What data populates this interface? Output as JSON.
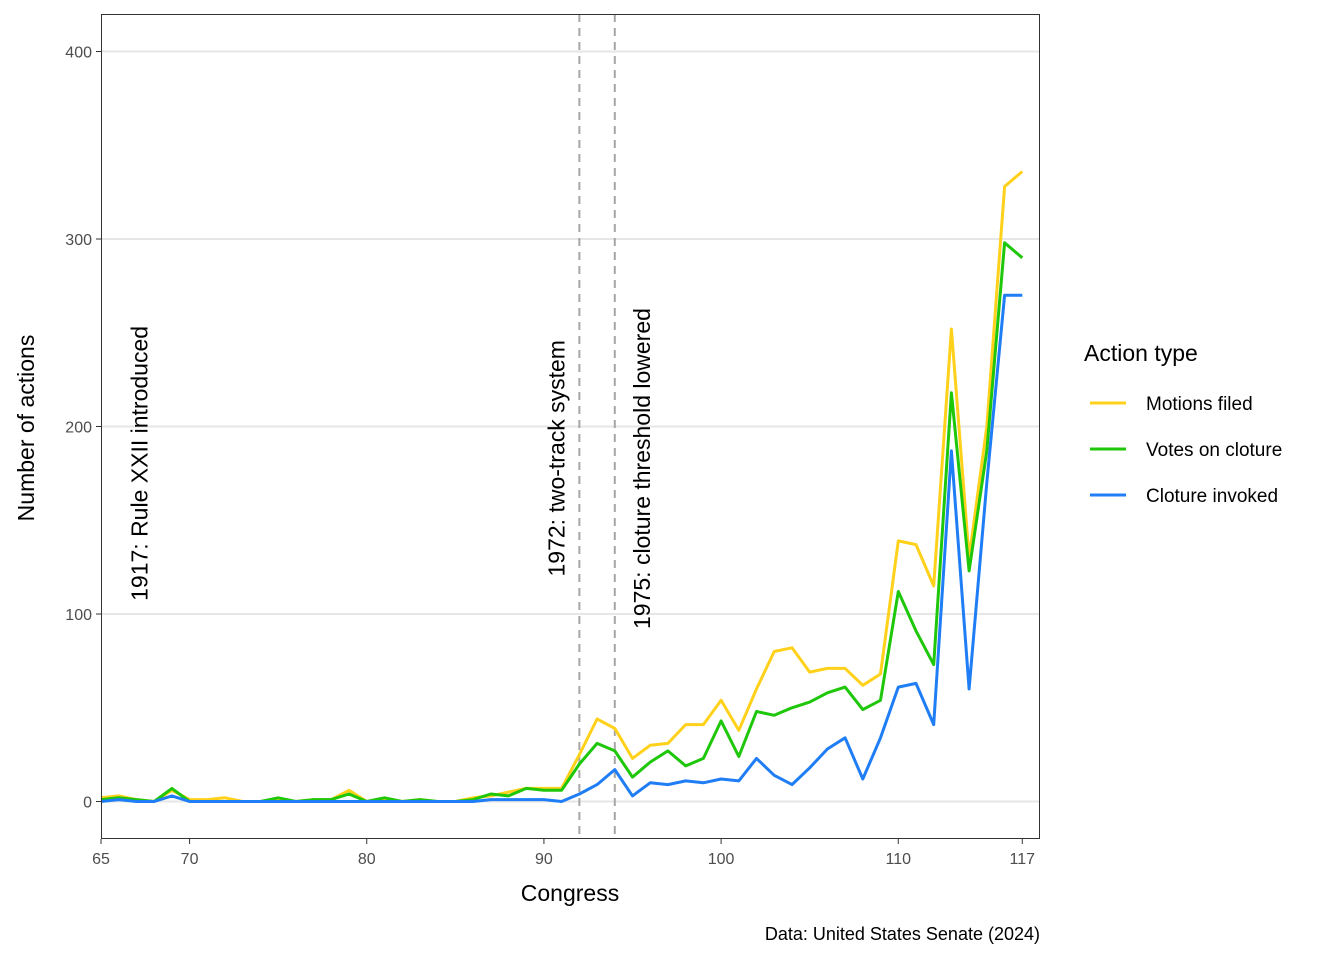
{
  "chart_data": {
    "type": "line",
    "xlabel": "Congress",
    "ylabel": "Number of actions",
    "caption": "Data: United States Senate (2024)",
    "xlim": [
      65,
      118
    ],
    "ylim": [
      -20,
      420
    ],
    "x_ticks": [
      65,
      70,
      80,
      90,
      100,
      110,
      117
    ],
    "y_ticks": [
      0,
      100,
      200,
      300,
      400
    ],
    "grid": "horizontal",
    "legend": {
      "title": "Action type",
      "position": "right"
    },
    "annotations": [
      {
        "x": 66,
        "label": "1917: Rule XXII introduced",
        "line": false
      },
      {
        "x": 92,
        "label": "1972: two-track system",
        "line": true
      },
      {
        "x": 94,
        "label": "1975: cloture threshold lowered",
        "line": true
      }
    ],
    "x": [
      65,
      66,
      67,
      68,
      69,
      70,
      71,
      72,
      73,
      74,
      75,
      76,
      77,
      78,
      79,
      80,
      81,
      82,
      83,
      84,
      85,
      86,
      87,
      88,
      89,
      90,
      91,
      92,
      93,
      94,
      95,
      96,
      97,
      98,
      99,
      100,
      101,
      102,
      103,
      104,
      105,
      106,
      107,
      108,
      109,
      110,
      111,
      112,
      113,
      114,
      115,
      116,
      117
    ],
    "series": [
      {
        "name": "Motions filed",
        "color": "#ffd11a",
        "values": [
          2,
          3,
          1,
          0,
          6,
          1,
          1,
          2,
          0,
          0,
          1,
          0,
          1,
          1,
          6,
          0,
          1,
          0,
          1,
          0,
          0,
          2,
          3,
          5,
          7,
          7,
          7,
          25,
          44,
          39,
          23,
          30,
          31,
          41,
          41,
          54,
          38,
          60,
          80,
          82,
          69,
          71,
          71,
          62,
          68,
          139,
          137,
          115,
          252,
          130,
          200,
          328,
          336
        ]
      },
      {
        "name": "Votes on cloture",
        "color": "#1fc70a",
        "values": [
          1,
          2,
          1,
          0,
          7,
          0,
          0,
          0,
          0,
          0,
          2,
          0,
          1,
          1,
          4,
          0,
          2,
          0,
          1,
          0,
          0,
          1,
          4,
          3,
          7,
          6,
          6,
          20,
          31,
          27,
          13,
          21,
          27,
          19,
          23,
          43,
          24,
          48,
          46,
          50,
          53,
          58,
          61,
          49,
          54,
          112,
          91,
          73,
          218,
          123,
          187,
          298,
          290
        ]
      },
      {
        "name": "Cloture invoked",
        "color": "#1f7ef5",
        "values": [
          0,
          1,
          0,
          0,
          3,
          0,
          0,
          0,
          0,
          0,
          0,
          0,
          0,
          0,
          0,
          0,
          0,
          0,
          0,
          0,
          0,
          0,
          1,
          1,
          1,
          1,
          0,
          4,
          9,
          17,
          3,
          10,
          9,
          11,
          10,
          12,
          11,
          23,
          14,
          9,
          18,
          28,
          34,
          12,
          34,
          61,
          63,
          41,
          187,
          60,
          170,
          270,
          270
        ]
      }
    ]
  }
}
